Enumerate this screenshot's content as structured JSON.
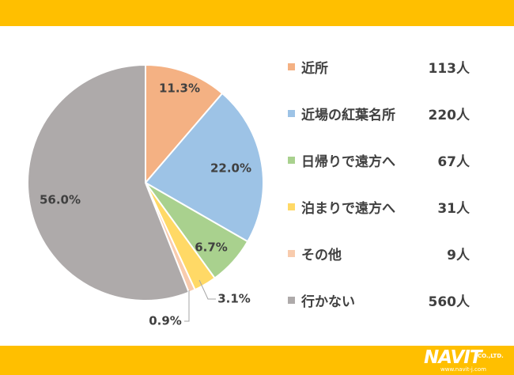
{
  "chart_data": {
    "type": "pie",
    "start_angle_deg": 0,
    "direction": "clockwise",
    "slices": [
      {
        "label": "近所",
        "count": "113人",
        "value": 11.3,
        "value_label": "11.3%",
        "color": "#f4b183"
      },
      {
        "label": "近場の紅葉名所",
        "count": "220人",
        "value": 22.0,
        "value_label": "22.0%",
        "color": "#9dc3e6"
      },
      {
        "label": "日帰りで遠方へ",
        "count": "67人",
        "value": 6.7,
        "value_label": "6.7%",
        "color": "#a9d18e"
      },
      {
        "label": "泊まりで遠方へ",
        "count": "31人",
        "value": 3.1,
        "value_label": "3.1%",
        "color": "#ffd966"
      },
      {
        "label": "その他",
        "count": "9人",
        "value": 0.9,
        "value_label": "0.9%",
        "color": "#f8cbad"
      },
      {
        "label": "行かない",
        "count": "560人",
        "value": 56.0,
        "value_label": "56.0%",
        "color": "#aeaaaa"
      }
    ],
    "legend_position": "right"
  },
  "branding": {
    "logo_text": "NAVIT",
    "logo_suffix": "CO.,LTD.",
    "url": "www.navit-j.com",
    "band_color": "#ffbf00"
  }
}
